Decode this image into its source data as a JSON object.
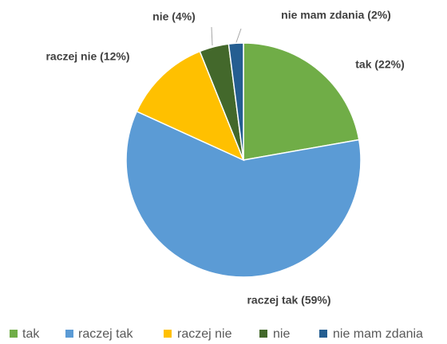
{
  "chart_data": {
    "type": "pie",
    "categories": [
      "tak",
      "raczej tak",
      "raczej nie",
      "nie",
      "nie mam zdania"
    ],
    "values": [
      22,
      59,
      12,
      4,
      2
    ],
    "value_labels": [
      "tak (22%)",
      "raczej tak (59%)",
      "raczej nie (12%)",
      "nie (4%)",
      "nie mam zdania (2%)"
    ],
    "colors": [
      "#70ad47",
      "#5b9bd5",
      "#ffc000",
      "#43682b",
      "#255e91"
    ],
    "legend": "bottom"
  }
}
